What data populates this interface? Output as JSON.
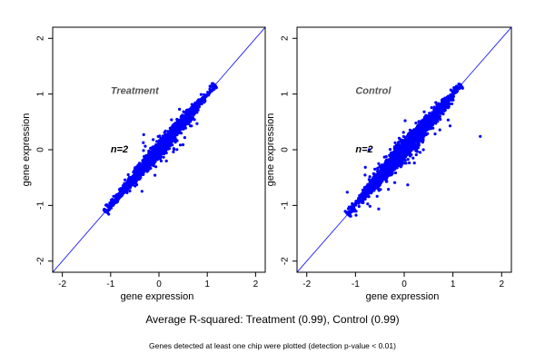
{
  "footer": {
    "main": "Average R-squared: Treatment (0.99), Control (0.99)",
    "sub": "Genes detected at least one chip were plotted (detection p-value < 0.01)"
  },
  "colors": {
    "points": "#0000ff",
    "identity_line": "#0000ff",
    "axes": "#000000",
    "panel_label": "#555555"
  },
  "chart_data": [
    {
      "type": "scatter",
      "title": "",
      "panel_label": "Treatment",
      "annotation": "n=2",
      "xlabel": "gene expression",
      "ylabel": "gene expression",
      "xlim": [
        -2.2,
        2.2
      ],
      "ylim": [
        -2.2,
        2.2
      ],
      "xticks": [
        -2,
        -1,
        0,
        1,
        2
      ],
      "yticks": [
        -2,
        -1,
        0,
        1,
        2
      ],
      "grid": false,
      "reference_line": {
        "slope": 1,
        "intercept": 0
      },
      "cloud": {
        "x_range": [
          -1.1,
          1.15
        ],
        "mean_slope": 1.0,
        "spread": 0.15,
        "outlier_dx": 0.18
      },
      "points_seed": 11,
      "n_points": 2600
    },
    {
      "type": "scatter",
      "title": "",
      "panel_label": "Control",
      "annotation": "n=2",
      "xlabel": "gene expression",
      "ylabel": "gene expression",
      "xlim": [
        -2.2,
        2.2
      ],
      "ylim": [
        -2.2,
        2.2
      ],
      "xticks": [
        -2,
        -1,
        0,
        1,
        2
      ],
      "yticks": [
        -2,
        -1,
        0,
        1,
        2
      ],
      "grid": false,
      "reference_line": {
        "slope": 1,
        "intercept": 0
      },
      "cloud": {
        "x_range": [
          -1.15,
          1.15
        ],
        "mean_slope": 1.0,
        "spread": 0.2,
        "outlier_dx": 0.22
      },
      "points_seed": 29,
      "n_points": 2600
    }
  ]
}
